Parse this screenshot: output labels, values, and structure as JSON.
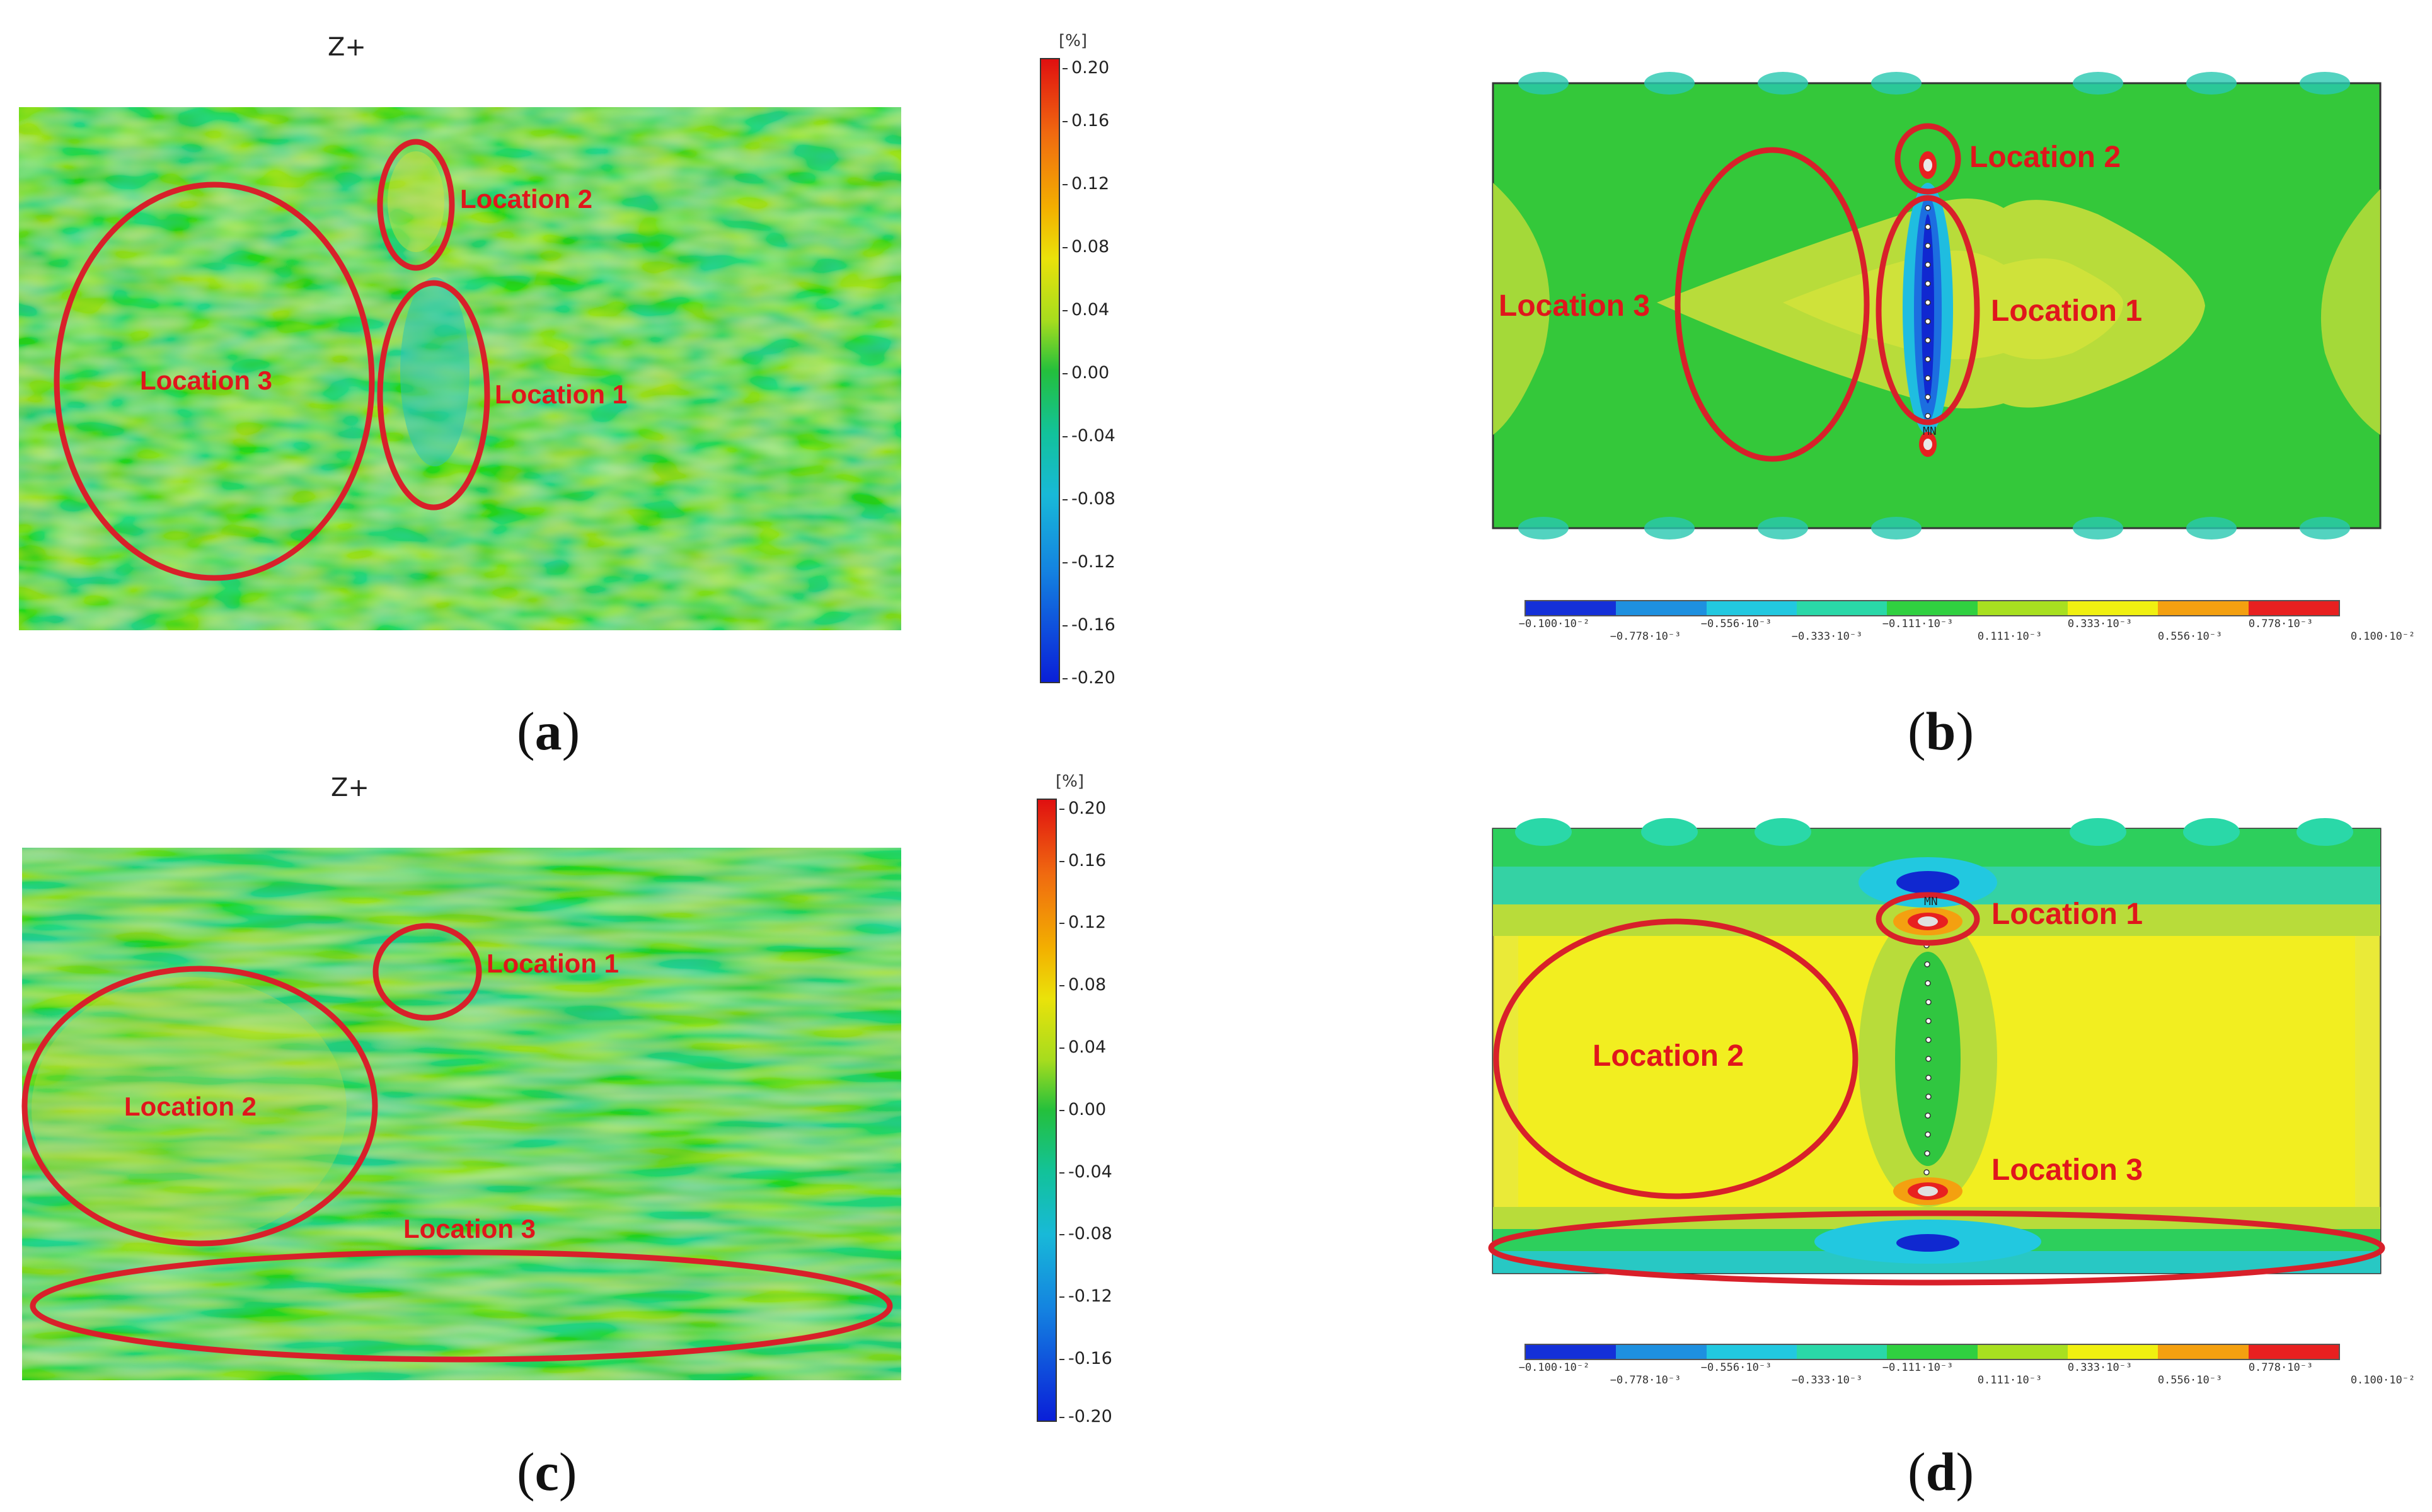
{
  "panels": {
    "a": {
      "label": "a",
      "view": "Z+",
      "colorbar_unit": "[%]",
      "locations": [
        "Location 1",
        "Location 2",
        "Location 3"
      ]
    },
    "b": {
      "label": "b",
      "node_label": "MN",
      "locations": [
        "Location 1",
        "Location 2",
        "Location 3"
      ]
    },
    "c": {
      "label": "c",
      "view": "Z+",
      "colorbar_unit": "[%]",
      "locations": [
        "Location 1",
        "Location 2",
        "Location 3"
      ]
    },
    "d": {
      "label": "d",
      "node_label": "MN",
      "locations": [
        "Location 1",
        "Location 2",
        "Location 3"
      ]
    }
  },
  "strain_colorbar": {
    "ticks": [
      "0.20",
      "0.16",
      "0.12",
      "0.08",
      "0.04",
      "0.00",
      "-0.04",
      "-0.08",
      "-0.12",
      "-0.16",
      "-0.20"
    ]
  },
  "fe_colorbar": {
    "ticks": [
      "−0.100·10⁻²",
      "−0.778·10⁻³",
      "−0.556·10⁻³",
      "−0.333·10⁻³",
      "−0.111·10⁻³",
      "0.111·10⁻³",
      "0.333·10⁻³",
      "0.556·10⁻³",
      "0.778·10⁻³",
      "0.100·10⁻²"
    ],
    "colors": [
      "#1430d8",
      "#1e90e0",
      "#22c8e0",
      "#2ad8a8",
      "#30d040",
      "#a8e020",
      "#f0f010",
      "#f4a010",
      "#e82020"
    ]
  }
}
